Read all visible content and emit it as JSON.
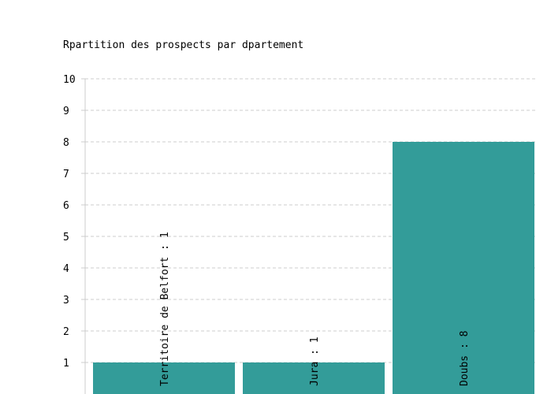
{
  "chart_data": {
    "type": "bar",
    "title": "Rpartition des prospects par dpartement",
    "xlabel": "",
    "ylabel": "",
    "categories": [
      "Territoire de Belfort",
      "Jura",
      "Doubs"
    ],
    "values": [
      1,
      1,
      8
    ],
    "bar_labels": [
      "Territoire de Belfort : 1",
      "Jura : 1",
      "Doubs : 8"
    ],
    "yticks": [
      "1",
      "2",
      "3",
      "4",
      "5",
      "6",
      "7",
      "8",
      "9",
      "10"
    ],
    "ylim": [
      0,
      10
    ],
    "grid": true,
    "legend": "none",
    "bar_color": "#339c99",
    "grid_color": "#cccccc",
    "axis_color": "#cccccc"
  }
}
